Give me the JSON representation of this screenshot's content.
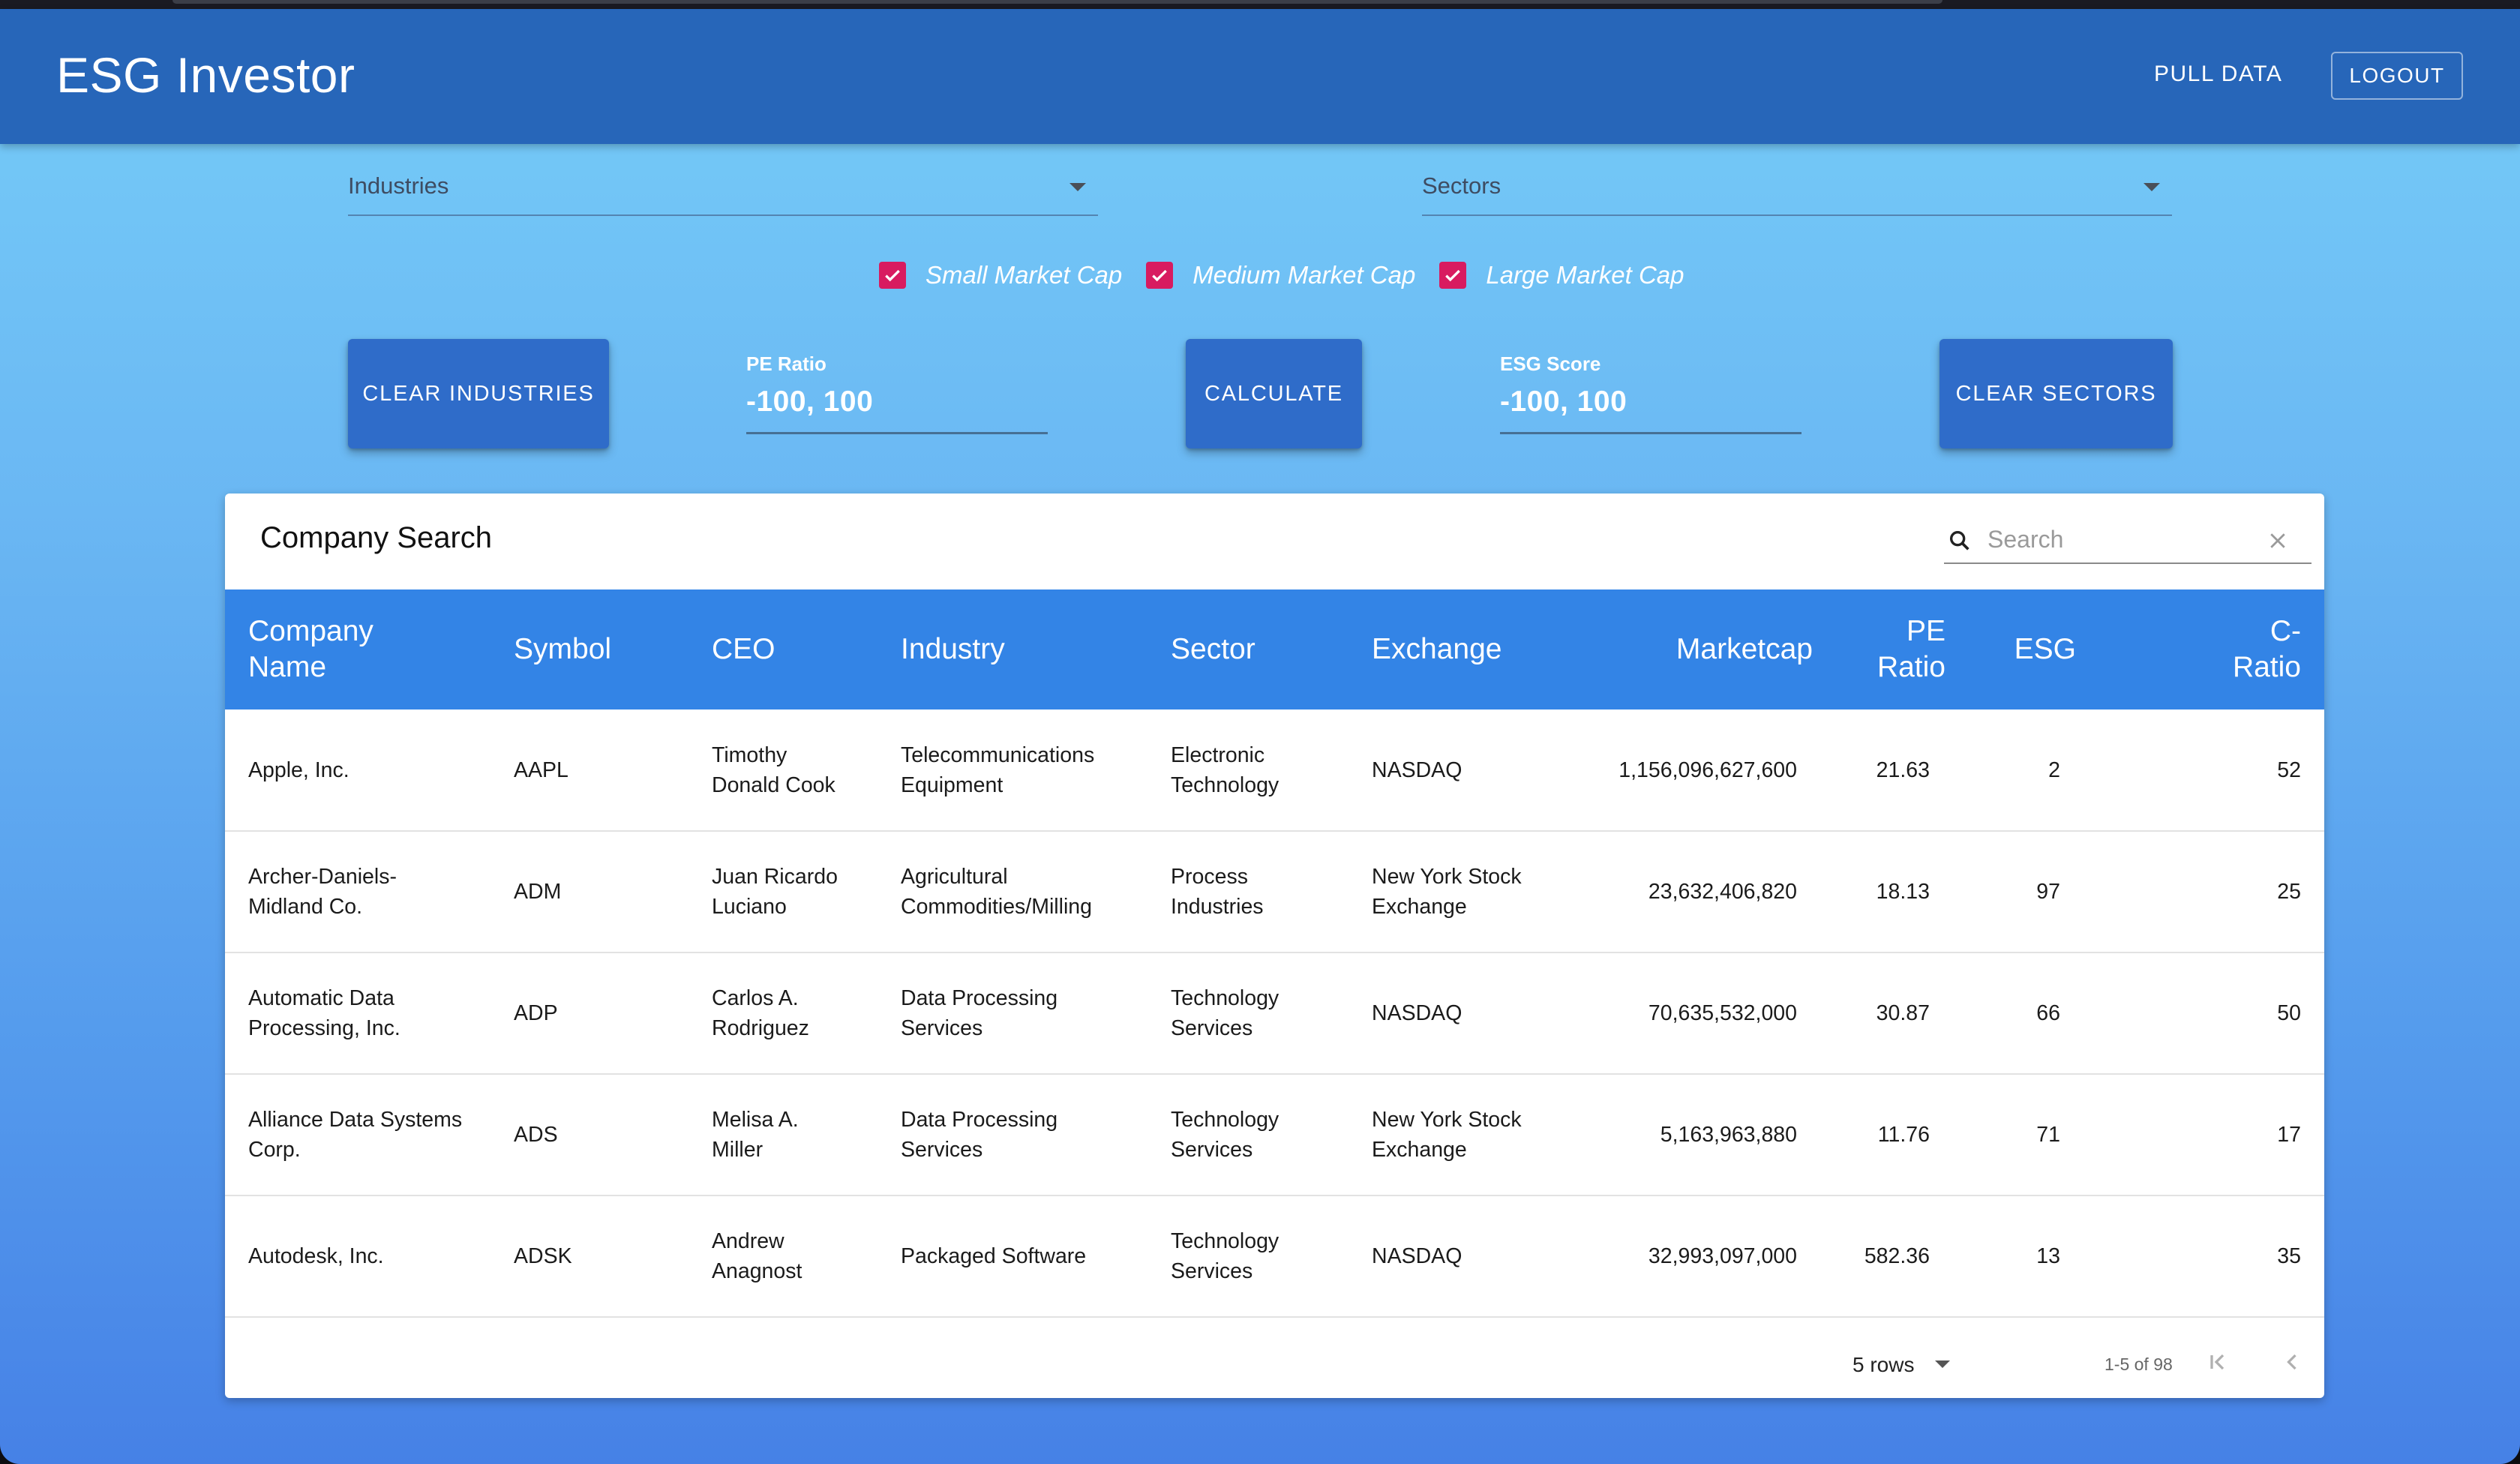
{
  "app": {
    "title": "ESG Investor",
    "pull_label": "PULL DATA",
    "logout_label": "LOGOUT"
  },
  "filters": {
    "industries_label": "Industries",
    "sectors_label": "Sectors",
    "checkboxes": [
      {
        "label": "Small Market Cap",
        "checked": true
      },
      {
        "label": "Medium Market Cap",
        "checked": true
      },
      {
        "label": "Large Market Cap",
        "checked": true
      }
    ],
    "clear_industries_label": "CLEAR INDUSTRIES",
    "calculate_label": "CALCULATE",
    "clear_sectors_label": "CLEAR SECTORS",
    "pe": {
      "label": "PE Ratio",
      "value": "-100, 100"
    },
    "esg": {
      "label": "ESG Score",
      "value": "-100, 100"
    }
  },
  "table": {
    "title": "Company Search",
    "search_placeholder": "Search",
    "columns": [
      {
        "line1": "Company",
        "line2": "Name"
      },
      {
        "line1": "Symbol",
        "line2": ""
      },
      {
        "line1": "CEO",
        "line2": ""
      },
      {
        "line1": "Industry",
        "line2": ""
      },
      {
        "line1": "Sector",
        "line2": ""
      },
      {
        "line1": "Exchange",
        "line2": ""
      },
      {
        "line1": "Marketcap",
        "line2": ""
      },
      {
        "line1": "PE",
        "line2": "Ratio"
      },
      {
        "line1": "ESG",
        "line2": ""
      },
      {
        "line1": "C-",
        "line2": "Ratio"
      }
    ],
    "rows": [
      {
        "name": [
          "Apple, Inc.",
          ""
        ],
        "symbol": "AAPL",
        "ceo": [
          "Timothy",
          "Donald Cook"
        ],
        "industry": [
          "Telecommunications",
          "Equipment"
        ],
        "sector": [
          "Electronic",
          "Technology"
        ],
        "exchange": [
          "NASDAQ",
          ""
        ],
        "marketcap": "1,156,096,627,600",
        "pe": "21.63",
        "esg": "2",
        "cratio": "52"
      },
      {
        "name": [
          "Archer-Daniels-",
          "Midland Co."
        ],
        "symbol": "ADM",
        "ceo": [
          "Juan Ricardo",
          "Luciano"
        ],
        "industry": [
          "Agricultural",
          "Commodities/Milling"
        ],
        "sector": [
          "Process",
          "Industries"
        ],
        "exchange": [
          "New York Stock",
          "Exchange"
        ],
        "marketcap": "23,632,406,820",
        "pe": "18.13",
        "esg": "97",
        "cratio": "25"
      },
      {
        "name": [
          "Automatic Data",
          "Processing, Inc."
        ],
        "symbol": "ADP",
        "ceo": [
          "Carlos A.",
          "Rodriguez"
        ],
        "industry": [
          "Data Processing",
          "Services"
        ],
        "sector": [
          "Technology",
          "Services"
        ],
        "exchange": [
          "NASDAQ",
          ""
        ],
        "marketcap": "70,635,532,000",
        "pe": "30.87",
        "esg": "66",
        "cratio": "50"
      },
      {
        "name": [
          "Alliance Data Systems",
          "Corp."
        ],
        "symbol": "ADS",
        "ceo": [
          "Melisa A.",
          "Miller"
        ],
        "industry": [
          "Data Processing",
          "Services"
        ],
        "sector": [
          "Technology",
          "Services"
        ],
        "exchange": [
          "New York Stock",
          "Exchange"
        ],
        "marketcap": "5,163,963,880",
        "pe": "11.76",
        "esg": "71",
        "cratio": "17"
      },
      {
        "name": [
          "Autodesk, Inc.",
          ""
        ],
        "symbol": "ADSK",
        "ceo": [
          "Andrew",
          "Anagnost"
        ],
        "industry": [
          "Packaged Software",
          ""
        ],
        "sector": [
          "Technology",
          "Services"
        ],
        "exchange": [
          "NASDAQ",
          ""
        ],
        "marketcap": "32,993,097,000",
        "pe": "582.36",
        "esg": "13",
        "cratio": "35"
      }
    ],
    "pagination": {
      "rows_per_page": "5 rows",
      "range": "1-5 of 98"
    }
  },
  "colors": {
    "appbar": "#2766b9",
    "header_row": "#3384e6",
    "checkbox": "#d81b60",
    "button": "#2f6cc9"
  }
}
